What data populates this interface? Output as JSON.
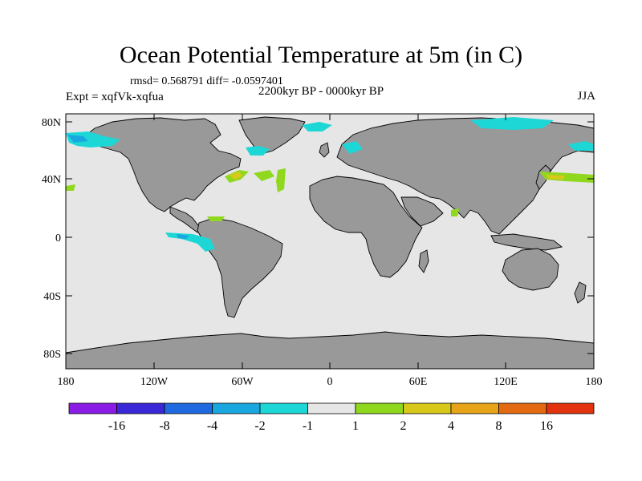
{
  "title": "Ocean Potential Temperature at 5m (in C)",
  "stats": "rmsd= 0.568791 diff= -0.0597401",
  "experiment": "Expt = xqfVk-xqfua",
  "period": "2200kyr BP - 0000kyr BP",
  "season": "JJA",
  "lat_labels": [
    "80N",
    "40N",
    "0",
    "40S",
    "80S"
  ],
  "lon_labels": [
    "180",
    "120W",
    "60W",
    "0",
    "60E",
    "120E",
    "180"
  ],
  "colorbar": {
    "labels": [
      "-16",
      "-8",
      "-4",
      "-2",
      "-1",
      "1",
      "2",
      "4",
      "8",
      "16"
    ],
    "colors": [
      "#8a1ce6",
      "#3a28d8",
      "#1f6ae0",
      "#19a7e0",
      "#1dd7d7",
      "#e6e6e6",
      "#8fd81e",
      "#d8c81a",
      "#e8a418",
      "#e46a12",
      "#e2320e"
    ]
  },
  "colors": {
    "ocean": "#e6e6e6",
    "land": "#999999",
    "coast": "#000000"
  }
}
